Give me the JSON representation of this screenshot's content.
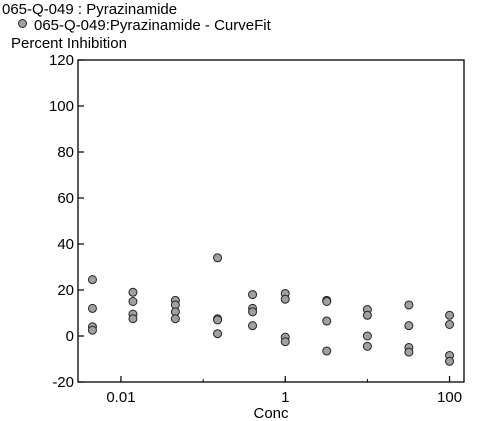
{
  "chart_data": {
    "type": "scatter",
    "title": "065-Q-049  : Pyrazinamide",
    "series": [
      {
        "name": "065-Q-049:Pyrazinamide - CurveFit",
        "marker_color": "#a0a0a0",
        "points": [
          {
            "x": 0.0045,
            "y": 24.5
          },
          {
            "x": 0.0045,
            "y": 12
          },
          {
            "x": 0.0045,
            "y": 4
          },
          {
            "x": 0.0045,
            "y": 2.5
          },
          {
            "x": 0.014,
            "y": 19
          },
          {
            "x": 0.014,
            "y": 15
          },
          {
            "x": 0.014,
            "y": 9.5
          },
          {
            "x": 0.014,
            "y": 7.5
          },
          {
            "x": 0.046,
            "y": 15.5
          },
          {
            "x": 0.046,
            "y": 13.5
          },
          {
            "x": 0.046,
            "y": 10.5
          },
          {
            "x": 0.046,
            "y": 7.5
          },
          {
            "x": 0.15,
            "y": 34
          },
          {
            "x": 0.15,
            "y": 7.5
          },
          {
            "x": 0.15,
            "y": 7
          },
          {
            "x": 0.15,
            "y": 1
          },
          {
            "x": 0.4,
            "y": 18
          },
          {
            "x": 0.4,
            "y": 12
          },
          {
            "x": 0.4,
            "y": 10.5
          },
          {
            "x": 0.4,
            "y": 4.5
          },
          {
            "x": 1,
            "y": 18.5
          },
          {
            "x": 1,
            "y": 16
          },
          {
            "x": 1,
            "y": -0.5
          },
          {
            "x": 1,
            "y": -2.5
          },
          {
            "x": 3.2,
            "y": 15.5
          },
          {
            "x": 3.2,
            "y": 15
          },
          {
            "x": 3.2,
            "y": 6.5
          },
          {
            "x": 3.2,
            "y": -6.5
          },
          {
            "x": 10,
            "y": 11.5
          },
          {
            "x": 10,
            "y": 9
          },
          {
            "x": 10,
            "y": 0
          },
          {
            "x": 10,
            "y": -4.5
          },
          {
            "x": 32,
            "y": 13.5
          },
          {
            "x": 32,
            "y": 4.5
          },
          {
            "x": 32,
            "y": -5
          },
          {
            "x": 32,
            "y": -7
          },
          {
            "x": 100,
            "y": 9
          },
          {
            "x": 100,
            "y": 5
          },
          {
            "x": 100,
            "y": -8.5
          },
          {
            "x": 100,
            "y": -11
          }
        ]
      }
    ],
    "xlabel": "Conc",
    "ylabel": "Percent  Inhibition",
    "x_scale": "log",
    "xlim": [
      0.003,
      150
    ],
    "ylim": [
      -20,
      120
    ],
    "x_ticks": [
      {
        "value": 0.01,
        "label": "0.01"
      },
      {
        "value": 1,
        "label": "1"
      },
      {
        "value": 100,
        "label": "100"
      }
    ],
    "y_ticks": [
      {
        "value": -20,
        "label": "-20"
      },
      {
        "value": 0,
        "label": "0"
      },
      {
        "value": 20,
        "label": "20"
      },
      {
        "value": 40,
        "label": "40"
      },
      {
        "value": 60,
        "label": "60"
      },
      {
        "value": 80,
        "label": "80"
      },
      {
        "value": 100,
        "label": "100"
      },
      {
        "value": 120,
        "label": "120"
      }
    ],
    "grid": false
  }
}
